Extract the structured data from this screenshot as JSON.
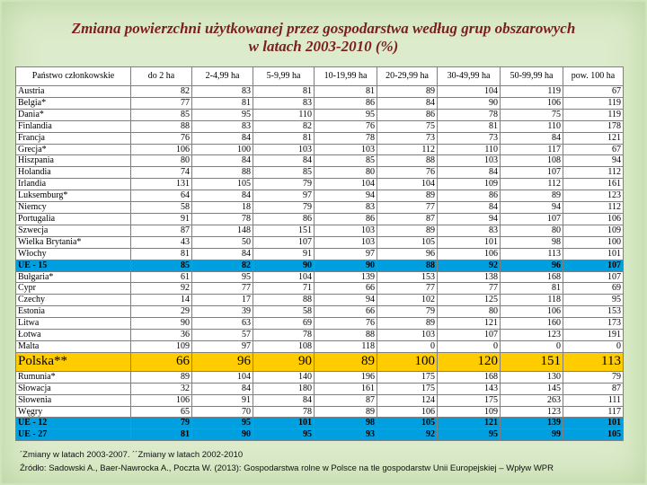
{
  "title_line1": "Zmiana powierzchni użytkowanej przez gospodarstwa według grup obszarowych",
  "title_line2": "w latach 2003-2010 (%)",
  "headers": [
    "Państwo członkowskie",
    "do 2 ha",
    "2-4,99 ha",
    "5-9,99 ha",
    "10-19,99 ha",
    "20-29,99 ha",
    "30-49,99 ha",
    "50-99,99 ha",
    "pow. 100 ha"
  ],
  "rows": [
    {
      "name": "Austria",
      "values": [
        "82",
        "83",
        "81",
        "81",
        "89",
        "104",
        "119",
        "67"
      ],
      "style": "normal"
    },
    {
      "name": "Belgia*",
      "values": [
        "77",
        "81",
        "83",
        "86",
        "84",
        "90",
        "106",
        "119"
      ],
      "style": "normal"
    },
    {
      "name": "Dania*",
      "values": [
        "85",
        "95",
        "110",
        "95",
        "86",
        "78",
        "75",
        "119"
      ],
      "style": "normal"
    },
    {
      "name": "Finlandia",
      "values": [
        "88",
        "83",
        "82",
        "76",
        "75",
        "81",
        "110",
        "178"
      ],
      "style": "normal"
    },
    {
      "name": "Francja",
      "values": [
        "76",
        "84",
        "81",
        "78",
        "73",
        "73",
        "84",
        "121"
      ],
      "style": "normal"
    },
    {
      "name": "Grecja*",
      "values": [
        "106",
        "100",
        "103",
        "103",
        "112",
        "110",
        "117",
        "67"
      ],
      "style": "normal"
    },
    {
      "name": "Hiszpania",
      "values": [
        "80",
        "84",
        "84",
        "85",
        "88",
        "103",
        "108",
        "94"
      ],
      "style": "normal"
    },
    {
      "name": "Holandia",
      "values": [
        "74",
        "88",
        "85",
        "80",
        "76",
        "84",
        "107",
        "112"
      ],
      "style": "normal"
    },
    {
      "name": "Irlandia",
      "values": [
        "131",
        "105",
        "79",
        "104",
        "104",
        "109",
        "112",
        "161"
      ],
      "style": "normal"
    },
    {
      "name": "Luksemburg*",
      "values": [
        "64",
        "84",
        "97",
        "94",
        "89",
        "86",
        "89",
        "123"
      ],
      "style": "normal"
    },
    {
      "name": "Niemcy",
      "values": [
        "58",
        "18",
        "79",
        "83",
        "77",
        "84",
        "94",
        "112"
      ],
      "style": "normal"
    },
    {
      "name": "Portugalia",
      "values": [
        "91",
        "78",
        "86",
        "86",
        "87",
        "94",
        "107",
        "106"
      ],
      "style": "normal"
    },
    {
      "name": "Szwecja",
      "values": [
        "87",
        "148",
        "151",
        "103",
        "89",
        "83",
        "80",
        "109"
      ],
      "style": "normal"
    },
    {
      "name": "Wielka Brytania*",
      "values": [
        "43",
        "50",
        "107",
        "103",
        "105",
        "101",
        "98",
        "100"
      ],
      "style": "normal"
    },
    {
      "name": "Włochy",
      "values": [
        "81",
        "84",
        "91",
        "97",
        "96",
        "106",
        "113",
        "101"
      ],
      "style": "normal"
    },
    {
      "name": "UE - 15",
      "values": [
        "85",
        "82",
        "90",
        "90",
        "88",
        "92",
        "96",
        "107"
      ],
      "style": "highlight"
    },
    {
      "name": "Bułgaria*",
      "values": [
        "61",
        "95",
        "104",
        "139",
        "153",
        "138",
        "168",
        "107"
      ],
      "style": "normal"
    },
    {
      "name": "Cypr",
      "values": [
        "92",
        "77",
        "71",
        "66",
        "77",
        "77",
        "81",
        "69"
      ],
      "style": "normal"
    },
    {
      "name": "Czechy",
      "values": [
        "14",
        "17",
        "88",
        "94",
        "102",
        "125",
        "118",
        "95"
      ],
      "style": "normal"
    },
    {
      "name": "Estonia",
      "values": [
        "29",
        "39",
        "58",
        "66",
        "79",
        "80",
        "106",
        "153"
      ],
      "style": "normal"
    },
    {
      "name": "Litwa",
      "values": [
        "90",
        "63",
        "69",
        "76",
        "89",
        "121",
        "160",
        "173"
      ],
      "style": "normal"
    },
    {
      "name": "Łotwa",
      "values": [
        "36",
        "57",
        "78",
        "88",
        "103",
        "107",
        "123",
        "191"
      ],
      "style": "normal"
    },
    {
      "name": "Malta",
      "values": [
        "109",
        "97",
        "108",
        "118",
        "0",
        "0",
        "0",
        "0"
      ],
      "style": "normal"
    },
    {
      "name": "Polska**",
      "values": [
        "66",
        "96",
        "90",
        "89",
        "100",
        "120",
        "151",
        "113"
      ],
      "style": "polska"
    },
    {
      "name": "Rumunia*",
      "values": [
        "89",
        "104",
        "140",
        "196",
        "175",
        "168",
        "130",
        "79"
      ],
      "style": "normal"
    },
    {
      "name": "Słowacja",
      "values": [
        "32",
        "84",
        "180",
        "161",
        "175",
        "143",
        "145",
        "87"
      ],
      "style": "normal"
    },
    {
      "name": "Słowenia",
      "values": [
        "106",
        "91",
        "84",
        "87",
        "124",
        "175",
        "263",
        "111"
      ],
      "style": "normal"
    },
    {
      "name": "Węgry",
      "values": [
        "65",
        "70",
        "78",
        "89",
        "106",
        "109",
        "123",
        "117"
      ],
      "style": "normal"
    },
    {
      "name": "UE - 12",
      "values": [
        "79",
        "95",
        "101",
        "98",
        "105",
        "121",
        "139",
        "101"
      ],
      "style": "highlight"
    },
    {
      "name": "UE - 27",
      "values": [
        "81",
        "90",
        "95",
        "93",
        "92",
        "95",
        "99",
        "105"
      ],
      "style": "highlight"
    }
  ],
  "footnote": "´Zmiany w latach 2003-2007. ´´Zmiany w latach 2002-2010",
  "source": "Źródło: Sadowski A., Baer-Nawrocka A., Poczta W. (2013): Gospodarstwa rolne w Polsce na tle gospodarstw Unii Europejskiej – Wpływ WPR",
  "colors": {
    "title": "#7b1f1f",
    "highlight_row": "#00a0e0",
    "polska_row": "#ffcc00",
    "background": "#dcebcb"
  }
}
